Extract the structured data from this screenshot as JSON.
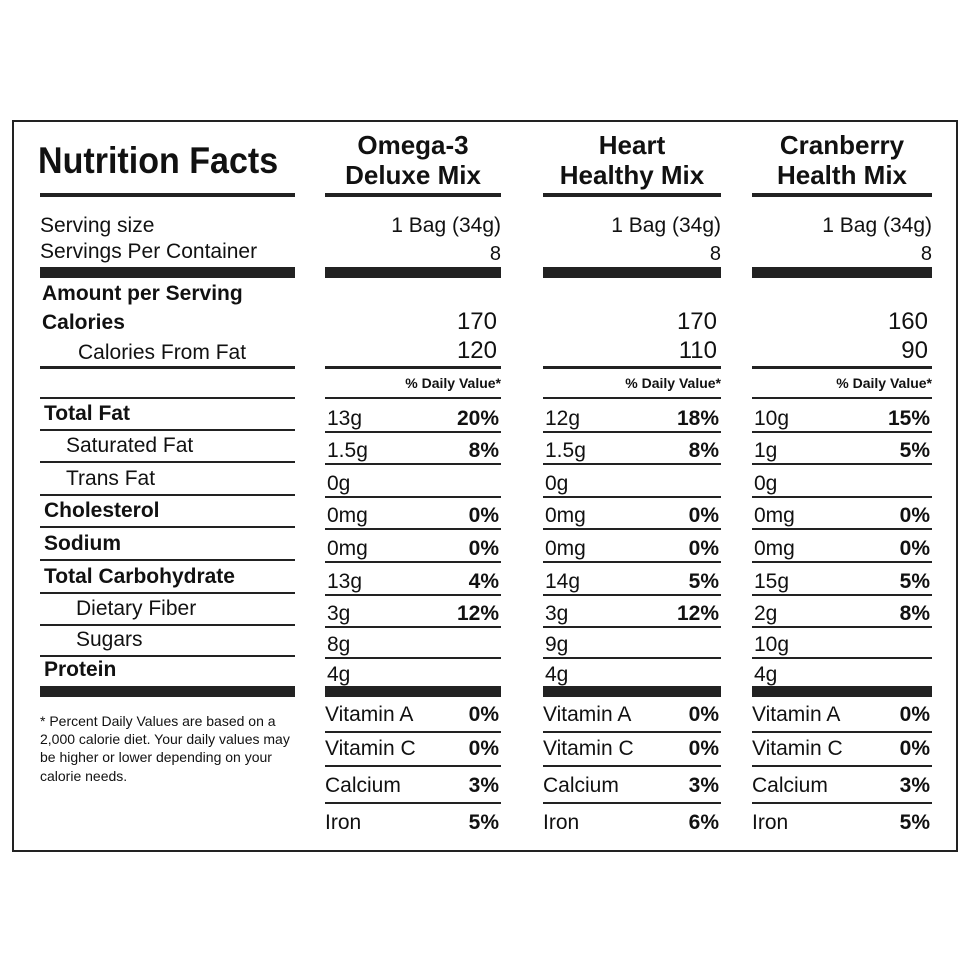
{
  "title": "Nutrition Facts",
  "labels": {
    "serving_size": "Serving size",
    "servings_per_container": "Servings Per Container",
    "amount_per_serving": "Amount per Serving",
    "calories": "Calories",
    "calories_from_fat": "Calories From Fat",
    "daily_value": "% Daily Value*"
  },
  "nutrients": [
    "Total Fat",
    "Saturated Fat",
    "Trans Fat",
    "Cholesterol",
    "Sodium",
    "Total Carbohydrate",
    "Dietary Fiber",
    "Sugars",
    "Protein"
  ],
  "vitamins": [
    "Vitamin A",
    "Vitamin C",
    "Calcium",
    "Iron"
  ],
  "footnote": "* Percent Daily Values are based on a 2,000 calorie diet. Your daily values may be higher or lower depending on your calorie needs.",
  "products": [
    {
      "name_lines": [
        "Omega-3",
        "Deluxe Mix"
      ],
      "serving_size": "1 Bag (34g)",
      "servings": 8,
      "calories": 170,
      "calories_from_fat": 120,
      "nutrients": [
        [
          "13g",
          "20%"
        ],
        [
          "1.5g",
          "8%"
        ],
        [
          "0g",
          null
        ],
        [
          "0mg",
          "0%"
        ],
        [
          "0mg",
          "0%"
        ],
        [
          "13g",
          "4%"
        ],
        [
          "3g",
          "12%"
        ],
        [
          "8g",
          null
        ],
        [
          "4g",
          null
        ]
      ],
      "vitamins": [
        "0%",
        "0%",
        "3%",
        "5%"
      ]
    },
    {
      "name_lines": [
        "Heart",
        "Healthy Mix"
      ],
      "serving_size": "1 Bag (34g)",
      "servings": 8,
      "calories": 170,
      "calories_from_fat": 110,
      "nutrients": [
        [
          "12g",
          "18%"
        ],
        [
          "1.5g",
          "8%"
        ],
        [
          "0g",
          null
        ],
        [
          "0mg",
          "0%"
        ],
        [
          "0mg",
          "0%"
        ],
        [
          "14g",
          "5%"
        ],
        [
          "3g",
          "12%"
        ],
        [
          "9g",
          null
        ],
        [
          "4g",
          null
        ]
      ],
      "vitamins": [
        "0%",
        "0%",
        "3%",
        "6%"
      ]
    },
    {
      "name_lines": [
        "Cranberry",
        "Health Mix"
      ],
      "serving_size": "1 Bag (34g)",
      "servings": 8,
      "calories": 160,
      "calories_from_fat": 90,
      "nutrients": [
        [
          "10g",
          "15%"
        ],
        [
          "1g",
          "5%"
        ],
        [
          "0g",
          null
        ],
        [
          "0mg",
          "0%"
        ],
        [
          "0mg",
          "0%"
        ],
        [
          "15g",
          "5%"
        ],
        [
          "2g",
          "8%"
        ],
        [
          "10g",
          null
        ],
        [
          "4g",
          null
        ]
      ],
      "vitamins": [
        "0%",
        "0%",
        "3%",
        "5%"
      ]
    }
  ]
}
